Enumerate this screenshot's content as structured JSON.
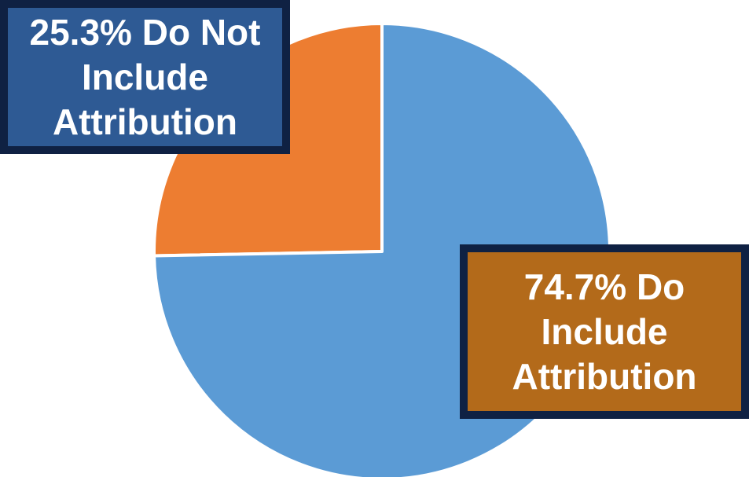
{
  "chart_data": {
    "type": "pie",
    "title": "",
    "slices": [
      {
        "label": "25.3% Do Not\nInclude\nAttribution",
        "value": 25.3,
        "color": "#ed7d31"
      },
      {
        "label": "74.7% Do\nInclude\nAttribution",
        "value": 74.7,
        "color": "#5b9bd5"
      }
    ],
    "legend": "none"
  },
  "colors": {
    "callout_not_bg": "#2e5a94",
    "callout_do_bg": "#b36a1a",
    "callout_border": "#0f2143"
  }
}
